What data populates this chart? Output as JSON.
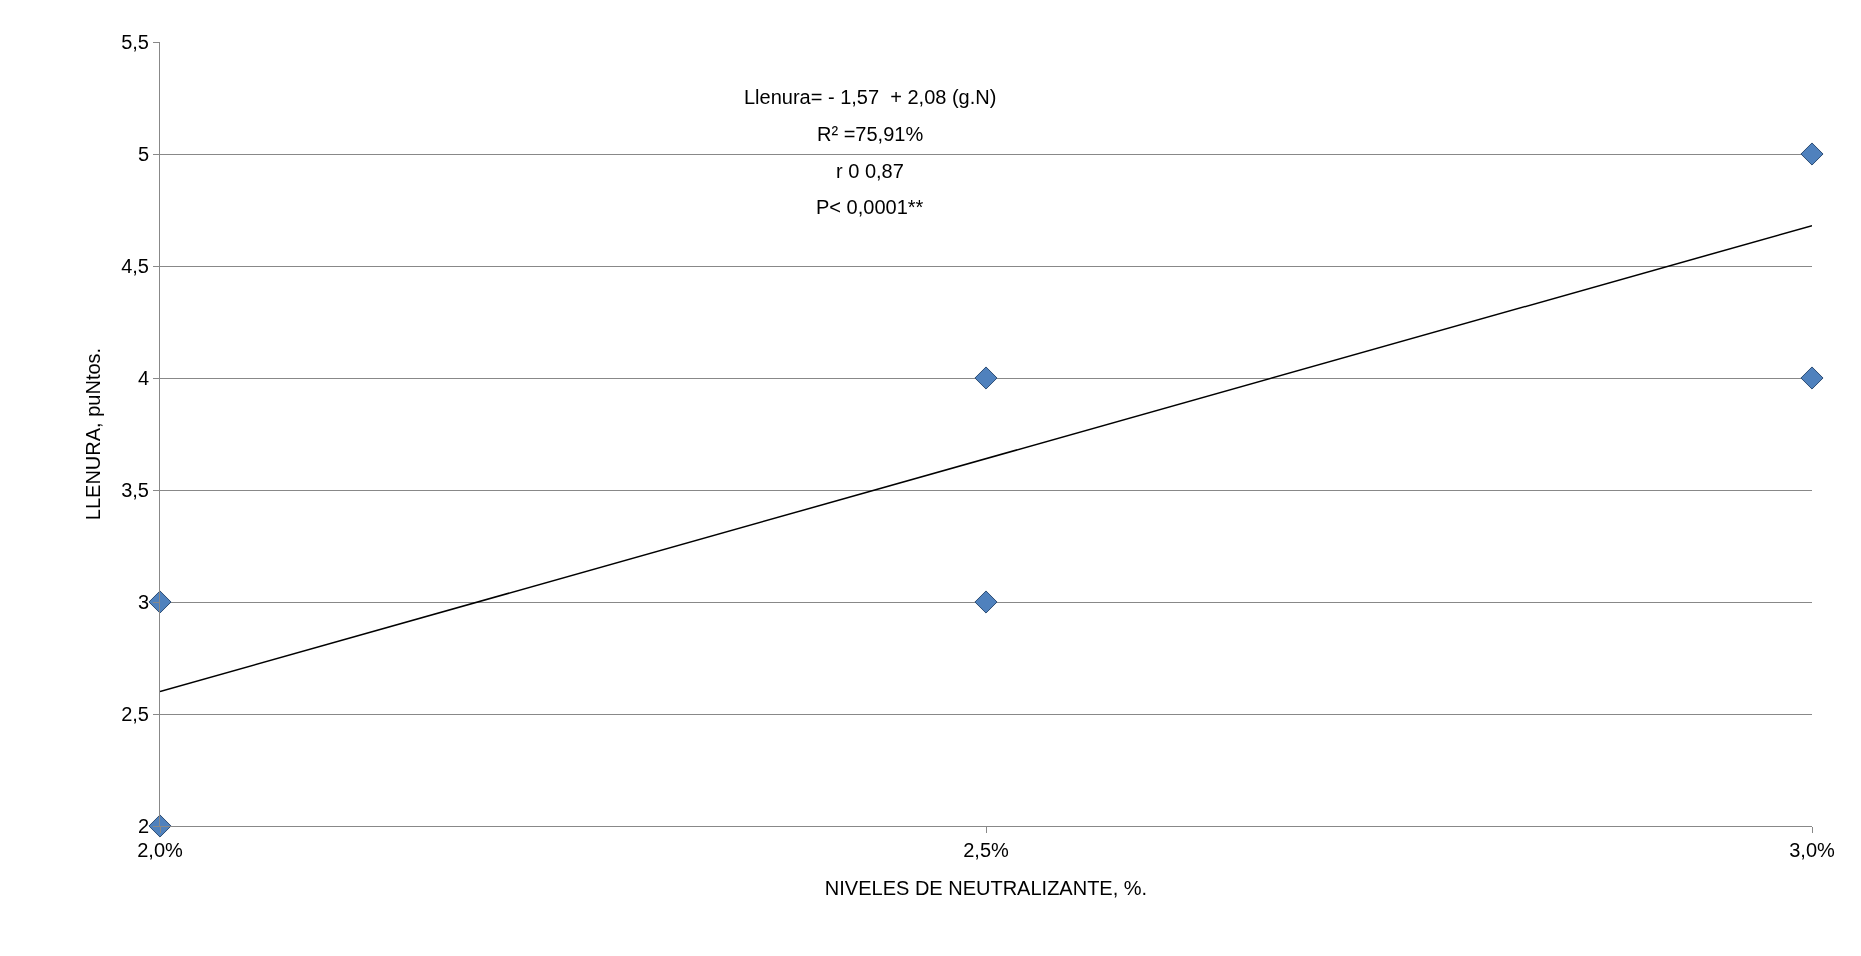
{
  "chart_data": {
    "type": "scatter",
    "xlabel": "NIVELES DE NEUTRALIZANTE, %.",
    "ylabel": "LLENURA, puNtos.",
    "x": [
      2.0,
      2.0,
      2.5,
      2.5,
      3.0,
      3.0
    ],
    "series": [
      {
        "color": "#4f81bd",
        "values": [
          3,
          2,
          4,
          3,
          5,
          4
        ],
        "marker": "diamond"
      },
      {
        "type": "line",
        "color": "#000000",
        "x": [
          2.0,
          3.0
        ],
        "values": [
          2.6,
          4.68
        ],
        "marker": "none",
        "line_style": "solid"
      }
    ],
    "xlim": [
      2.0,
      3.0
    ],
    "xticks": [
      {
        "value": 2.0,
        "label": "2,0%"
      },
      {
        "value": 2.5,
        "label": "2,5%"
      },
      {
        "value": 3.0,
        "label": "3,0%"
      }
    ],
    "ylim": [
      2,
      5.5
    ],
    "yticks": [
      2,
      {
        "value": 2.5,
        "label": "2,5"
      },
      3,
      {
        "value": 3.5,
        "label": "3,5"
      },
      4,
      {
        "value": 4.5,
        "label": "4,5"
      },
      5,
      {
        "value": 5.5,
        "label": "5,5"
      }
    ],
    "grid": "y",
    "annotations": [
      "Llenura= - 1,57  + 2,08 (g.N)",
      "R² =75,91%",
      "r 0 0,87",
      "P< 0,0001**"
    ]
  }
}
